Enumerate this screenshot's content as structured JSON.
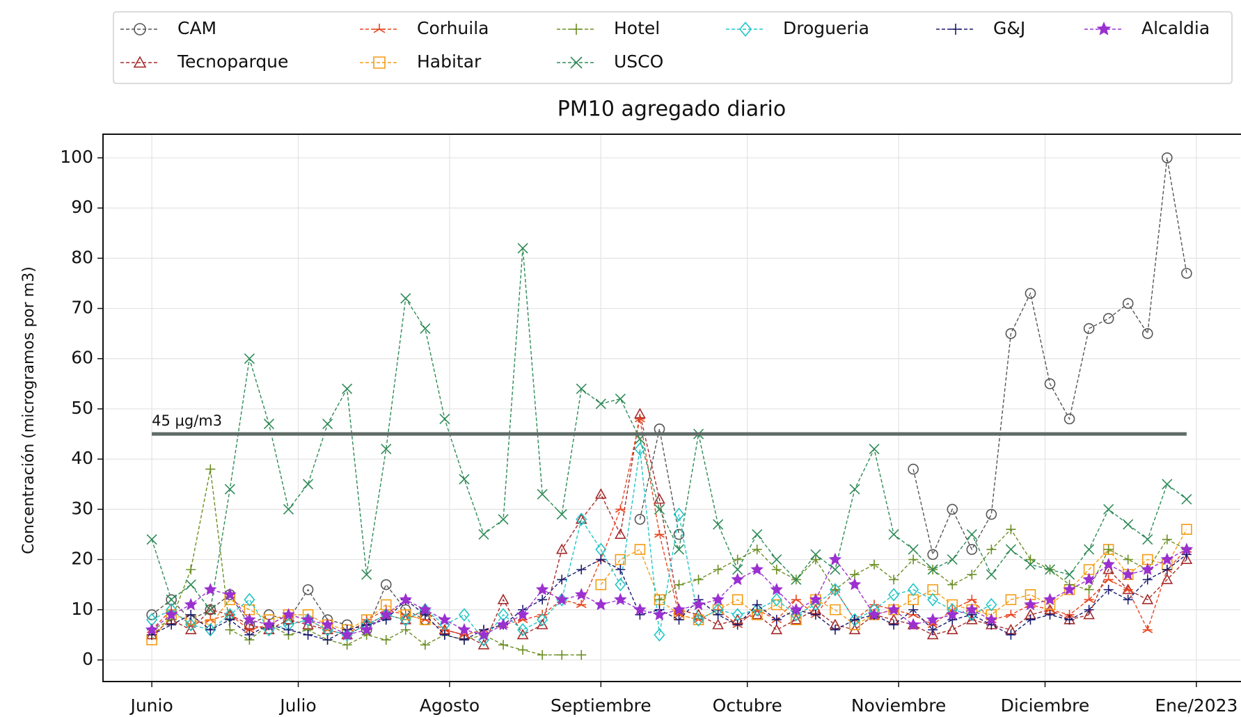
{
  "chart_data": {
    "type": "line",
    "title": "PM10 agregado diario",
    "y_label": "Concentración (microgramos por m3)",
    "x": [
      "2022-06-01",
      "2022-06-05",
      "2022-06-09",
      "2022-06-13",
      "2022-06-17",
      "2022-06-21",
      "2022-06-25",
      "2022-06-29",
      "2022-07-03",
      "2022-07-07",
      "2022-07-11",
      "2022-07-15",
      "2022-07-19",
      "2022-07-23",
      "2022-07-27",
      "2022-07-31",
      "2022-08-04",
      "2022-08-08",
      "2022-08-12",
      "2022-08-16",
      "2022-08-20",
      "2022-08-24",
      "2022-08-28",
      "2022-09-01",
      "2022-09-05",
      "2022-09-09",
      "2022-09-13",
      "2022-09-17",
      "2022-09-21",
      "2022-09-25",
      "2022-09-29",
      "2022-10-03",
      "2022-10-07",
      "2022-10-11",
      "2022-10-15",
      "2022-10-19",
      "2022-10-23",
      "2022-10-27",
      "2022-10-31",
      "2022-11-04",
      "2022-11-08",
      "2022-11-12",
      "2022-11-16",
      "2022-11-20",
      "2022-11-24",
      "2022-11-28",
      "2022-12-02",
      "2022-12-06",
      "2022-12-10",
      "2022-12-14",
      "2022-12-18",
      "2022-12-22",
      "2022-12-26",
      "2022-12-30"
    ],
    "series": [
      {
        "name": "CAM",
        "color": "#555555",
        "marker": "circle",
        "values": [
          9,
          12,
          8,
          10,
          13,
          7,
          9,
          8,
          14,
          8,
          7,
          6,
          15,
          10,
          8,
          null,
          null,
          null,
          null,
          null,
          null,
          null,
          null,
          null,
          null,
          28,
          46,
          25,
          null,
          null,
          null,
          null,
          null,
          null,
          null,
          null,
          null,
          null,
          null,
          38,
          21,
          30,
          22,
          29,
          65,
          73,
          55,
          48,
          66,
          68,
          71,
          65,
          100,
          77
        ]
      },
      {
        "name": "Tecnoparque",
        "color": "#a52a2a",
        "marker": "triangle",
        "values": [
          5,
          8,
          6,
          10,
          9,
          7,
          6,
          8,
          7,
          6,
          5,
          7,
          9,
          8,
          10,
          6,
          5,
          3,
          12,
          5,
          7,
          22,
          28,
          33,
          25,
          49,
          32,
          10,
          9,
          7,
          8,
          9,
          6,
          8,
          10,
          7,
          6,
          9,
          8,
          7,
          5,
          6,
          8,
          7,
          6,
          9,
          10,
          8,
          9,
          18,
          14,
          12,
          16,
          20
        ]
      },
      {
        "name": "Corhuila",
        "color": "#e8431e",
        "marker": "tri",
        "values": [
          6,
          10,
          7,
          8,
          9,
          6,
          7,
          9,
          8,
          6,
          5,
          8,
          10,
          9,
          8,
          6,
          5,
          6,
          7,
          8,
          9,
          12,
          11,
          20,
          30,
          48,
          25,
          9,
          8,
          10,
          7,
          10,
          8,
          12,
          9,
          14,
          8,
          11,
          10,
          9,
          7,
          10,
          12,
          8,
          9,
          11,
          10,
          9,
          12,
          16,
          14,
          6,
          18,
          22
        ]
      },
      {
        "name": "Habitar",
        "color": "#f39c12",
        "marker": "square",
        "values": [
          4,
          9,
          8,
          7,
          12,
          10,
          8,
          9,
          9,
          7,
          6,
          8,
          11,
          9,
          8,
          null,
          null,
          null,
          null,
          null,
          null,
          null,
          null,
          15,
          20,
          22,
          12,
          9,
          8,
          10,
          12,
          9,
          11,
          8,
          12,
          10,
          7,
          9,
          10,
          12,
          14,
          11,
          10,
          9,
          12,
          13,
          11,
          14,
          18,
          22,
          17,
          20,
          19,
          26
        ]
      },
      {
        "name": "Hotel",
        "color": "#6b8e23",
        "marker": "plus",
        "values": [
          6,
          8,
          18,
          38,
          6,
          4,
          7,
          5,
          6,
          4,
          3,
          5,
          4,
          6,
          3,
          5,
          4,
          5,
          3,
          2,
          1,
          1,
          1,
          null,
          null,
          null,
          12,
          15,
          16,
          18,
          20,
          22,
          18,
          16,
          20,
          14,
          17,
          19,
          16,
          20,
          18,
          15,
          17,
          22,
          26,
          20,
          18,
          15,
          14,
          22,
          20,
          18,
          24,
          22
        ]
      },
      {
        "name": "USCO",
        "color": "#2e8b57",
        "marker": "x",
        "values": [
          24,
          12,
          15,
          10,
          34,
          60,
          47,
          30,
          35,
          47,
          54,
          17,
          42,
          72,
          66,
          48,
          36,
          25,
          28,
          82,
          33,
          29,
          54,
          51,
          52,
          44,
          30,
          22,
          45,
          27,
          18,
          25,
          20,
          16,
          21,
          18,
          34,
          42,
          25,
          22,
          18,
          20,
          25,
          17,
          22,
          19,
          18,
          17,
          22,
          30,
          27,
          24,
          35,
          32
        ]
      },
      {
        "name": "Drogueria",
        "color": "#20c5c5",
        "marker": "diamond",
        "values": [
          8,
          10,
          7,
          6,
          9,
          12,
          6,
          7,
          8,
          6,
          5,
          7,
          9,
          8,
          10,
          7,
          9,
          4,
          9,
          6,
          8,
          12,
          28,
          22,
          15,
          42,
          5,
          29,
          8,
          10,
          9,
          10,
          12,
          9,
          11,
          14,
          8,
          10,
          13,
          14,
          12,
          10,
          9,
          11,
          null,
          null,
          null,
          null,
          null,
          null,
          null,
          null,
          null,
          null
        ]
      },
      {
        "name": "G&J",
        "color": "#1a1a6e",
        "marker": "plus",
        "values": [
          5,
          7,
          9,
          6,
          8,
          5,
          7,
          6,
          5,
          4,
          6,
          7,
          8,
          12,
          9,
          5,
          4,
          6,
          7,
          10,
          12,
          16,
          18,
          20,
          18,
          9,
          10,
          8,
          12,
          9,
          7,
          11,
          8,
          10,
          9,
          6,
          8,
          9,
          7,
          10,
          6,
          8,
          9,
          7,
          5,
          8,
          9,
          8,
          10,
          14,
          12,
          16,
          18,
          21
        ]
      },
      {
        "name": "Alcaldia",
        "color": "#9b30d0",
        "marker": "star",
        "values": [
          6,
          9,
          11,
          14,
          13,
          8,
          7,
          9,
          8,
          7,
          5,
          6,
          9,
          12,
          10,
          8,
          6,
          5,
          7,
          9,
          14,
          12,
          13,
          11,
          12,
          10,
          9,
          10,
          11,
          12,
          16,
          18,
          14,
          10,
          12,
          20,
          15,
          9,
          10,
          7,
          8,
          9,
          10,
          8,
          null,
          11,
          12,
          14,
          16,
          19,
          17,
          18,
          20,
          22
        ]
      }
    ],
    "xlim": [
      "2022-05-22",
      "2023-01-10"
    ],
    "xticks": [
      {
        "value": "2022-06-01",
        "label": "Junio"
      },
      {
        "value": "2022-07-01",
        "label": "Julio"
      },
      {
        "value": "2022-08-01",
        "label": "Agosto"
      },
      {
        "value": "2022-09-01",
        "label": "Septiembre"
      },
      {
        "value": "2022-10-01",
        "label": "Octubre"
      },
      {
        "value": "2022-11-01",
        "label": "Noviembre"
      },
      {
        "value": "2022-12-01",
        "label": "Diciembre"
      },
      {
        "value": "2023-01-01",
        "label": "Ene/2023"
      }
    ],
    "ylim": [
      -4.3,
      104.7
    ],
    "yticks": [
      0,
      10,
      20,
      30,
      40,
      50,
      60,
      70,
      80,
      90,
      100
    ],
    "grid": true,
    "legend": "top",
    "hline": {
      "value": 45,
      "label": "45 µg/m3",
      "color": "#5f6b66",
      "x": [
        "2022-06-01",
        "2022-12-30"
      ]
    }
  }
}
